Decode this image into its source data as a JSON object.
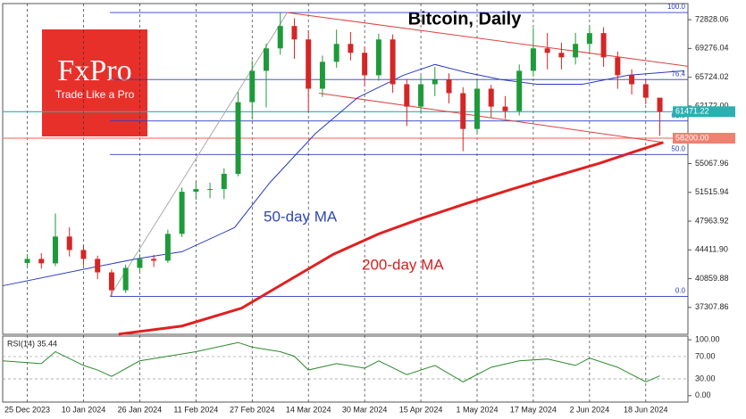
{
  "chart_data": {
    "type": "candlestick",
    "title": "Bitcoin, Daily",
    "logo": {
      "brand": "FxPro",
      "slogan": "Trade Like a Pro"
    },
    "annotations": [
      {
        "text": "50-day MA",
        "color": "#3048b0"
      },
      {
        "text": "200-day MA",
        "color": "#d42020"
      }
    ],
    "xlim": [
      -7,
      188
    ],
    "xticks": [
      {
        "value": 0,
        "label": "25 Dec 2023"
      },
      {
        "value": 16,
        "label": "10 Jan 2024"
      },
      {
        "value": 32,
        "label": "26 Jan 2024"
      },
      {
        "value": 48,
        "label": "11 Feb 2024"
      },
      {
        "value": 64,
        "label": "27 Feb 2024"
      },
      {
        "value": 80,
        "label": "14 Mar 2024"
      },
      {
        "value": 96,
        "label": "30 Mar 2024"
      },
      {
        "value": 112,
        "label": "15 Apr 2024"
      },
      {
        "value": 128,
        "label": "1 May 2024"
      },
      {
        "value": 144,
        "label": "17 May 2024"
      },
      {
        "value": 160,
        "label": "2 Jun 2024"
      },
      {
        "value": 176,
        "label": "18 Jun 2024"
      }
    ],
    "ylim": [
      33990,
      74820
    ],
    "yticks": [
      72828.06,
      69276.04,
      65724.02,
      {
        "value": 62172,
        "label": "62172.00"
      },
      55067.96,
      51515.94,
      47963.92,
      {
        "value": 44411.9,
        "label": "44411.90"
      },
      40859.88,
      37307.86
    ],
    "candles": {
      "up_color": "#1f9a3a",
      "down_color": "#d42626",
      "x": [
        0,
        4,
        8,
        12,
        16,
        20,
        24,
        28,
        32,
        36,
        40,
        44,
        48,
        52,
        56,
        60,
        64,
        68,
        72,
        76,
        80,
        84,
        88,
        92,
        96,
        100,
        104,
        108,
        112,
        116,
        120,
        124,
        128,
        132,
        136,
        140,
        144,
        148,
        152,
        156,
        160,
        164,
        168,
        172,
        176,
        180
      ],
      "open": [
        42800,
        43300,
        42750,
        46060,
        44400,
        43300,
        41640,
        39430,
        42190,
        43300,
        43080,
        46390,
        51590,
        51920,
        51920,
        53800,
        62650,
        66520,
        69290,
        72050,
        70390,
        64310,
        67630,
        69840,
        68740,
        65970,
        70390,
        64860,
        62100,
        64860,
        65420,
        63760,
        59340,
        64310,
        62100,
        61550,
        66520,
        69290,
        68740,
        68180,
        69840,
        71170,
        68180,
        65970,
        64860,
        63200
      ],
      "high": [
        43900,
        44000,
        48900,
        47200,
        45000,
        43700,
        42000,
        42600,
        43900,
        43800,
        46900,
        52100,
        52800,
        52700,
        54500,
        63900,
        67800,
        69900,
        73713,
        73000,
        71500,
        68400,
        71600,
        71300,
        69500,
        71100,
        71000,
        65500,
        65900,
        67000,
        66200,
        64500,
        65400,
        64800,
        63400,
        67300,
        71800,
        71200,
        70000,
        71200,
        72000,
        71900,
        68900,
        66700,
        65500,
        62300
      ],
      "low": [
        42300,
        42100,
        42400,
        43600,
        42500,
        40800,
        38660,
        39100,
        41700,
        42300,
        42800,
        46000,
        50600,
        50800,
        50700,
        53500,
        60500,
        62000,
        68500,
        68000,
        61400,
        63300,
        66900,
        67800,
        64600,
        65300,
        63800,
        59700,
        61200,
        63400,
        62500,
        56600,
        58700,
        60700,
        60600,
        61000,
        65800,
        66700,
        66700,
        67300,
        68900,
        67000,
        64300,
        63600,
        62400,
        58500
      ],
      "close": [
        43300,
        42750,
        46060,
        44400,
        43300,
        41640,
        39430,
        42190,
        43300,
        43080,
        46390,
        51590,
        51920,
        51920,
        53800,
        62650,
        66520,
        69290,
        72050,
        70390,
        64310,
        67630,
        69840,
        68740,
        65970,
        70390,
        64860,
        62100,
        64860,
        65420,
        63760,
        59340,
        64310,
        62100,
        61550,
        66520,
        69290,
        68740,
        68180,
        69840,
        71170,
        68180,
        65970,
        64860,
        63200,
        61471.22
      ]
    },
    "series": [
      {
        "name": "MA50",
        "color": "#2a3cc0",
        "x": [
          -7,
          18,
          31,
          44,
          59,
          69,
          82,
          94,
          107,
          116,
          125,
          135,
          145,
          158,
          171,
          187
        ],
        "values": [
          39980,
          42190,
          43300,
          44180,
          47170,
          52700,
          58780,
          63200,
          65970,
          67300,
          66300,
          65420,
          64860,
          64860,
          65970,
          66520
        ]
      },
      {
        "name": "MA200",
        "color": "#e02020",
        "x": [
          26,
          44,
          61,
          74,
          87,
          100,
          112,
          125,
          138,
          150,
          163,
          173,
          181
        ],
        "values": [
          34010,
          35010,
          37220,
          40540,
          43850,
          46390,
          48280,
          50150,
          51920,
          53470,
          55130,
          56570,
          57680
        ]
      }
    ],
    "trendlines": [
      {
        "color": "#e04040",
        "x": [
          74,
          188
        ],
        "values": [
          73710,
          67080
        ]
      },
      {
        "color": "#e04040",
        "x": [
          83,
          181
        ],
        "values": [
          63760,
          57680
        ]
      },
      {
        "color": "#aaaaaa",
        "x": [
          23.5,
          74
        ],
        "values": [
          38660,
          73713
        ]
      }
    ],
    "fib": {
      "color": "#2a3cc0",
      "x_start": 23.5,
      "levels": [
        {
          "label": "100.0",
          "price": 73713
        },
        {
          "label": "76.4",
          "price": 65440
        },
        {
          "label": "61.8",
          "price": 60323
        },
        {
          "label": "50.0",
          "price": 56186
        },
        {
          "label": "0.0",
          "price": 38660
        }
      ]
    },
    "hlines": [
      {
        "value": 61471.22,
        "color": "#2ab0b0"
      },
      {
        "value": 58200,
        "value_label": "58200.00",
        "color": "#f08070"
      }
    ],
    "rsi": {
      "title": "RSI(14) 35.44",
      "color": "#2c8a2c",
      "ylim": [
        -11.5,
        106.6
      ],
      "yticks": [
        {
          "value": 100,
          "label": "100.00"
        },
        {
          "value": 70,
          "label": "70.00"
        },
        {
          "value": 30,
          "label": "30.00"
        },
        {
          "value": 0,
          "label": "0.00"
        }
      ],
      "x": [
        -7,
        4,
        8,
        16,
        20,
        24,
        32,
        40,
        48,
        60,
        64,
        72,
        76,
        80,
        88,
        96,
        100,
        108,
        116,
        124,
        132,
        140,
        148,
        156,
        160,
        168,
        176,
        180
      ],
      "values": [
        62.3,
        57.4,
        78.7,
        54.1,
        45.9,
        34.4,
        62.3,
        70.5,
        78.7,
        95.1,
        86.9,
        78.7,
        70.5,
        45.9,
        57.4,
        49.2,
        62.3,
        37.7,
        54.1,
        24.6,
        50.8,
        62.3,
        65.6,
        54.1,
        67.2,
        50.8,
        24.6,
        35.44
      ]
    }
  }
}
